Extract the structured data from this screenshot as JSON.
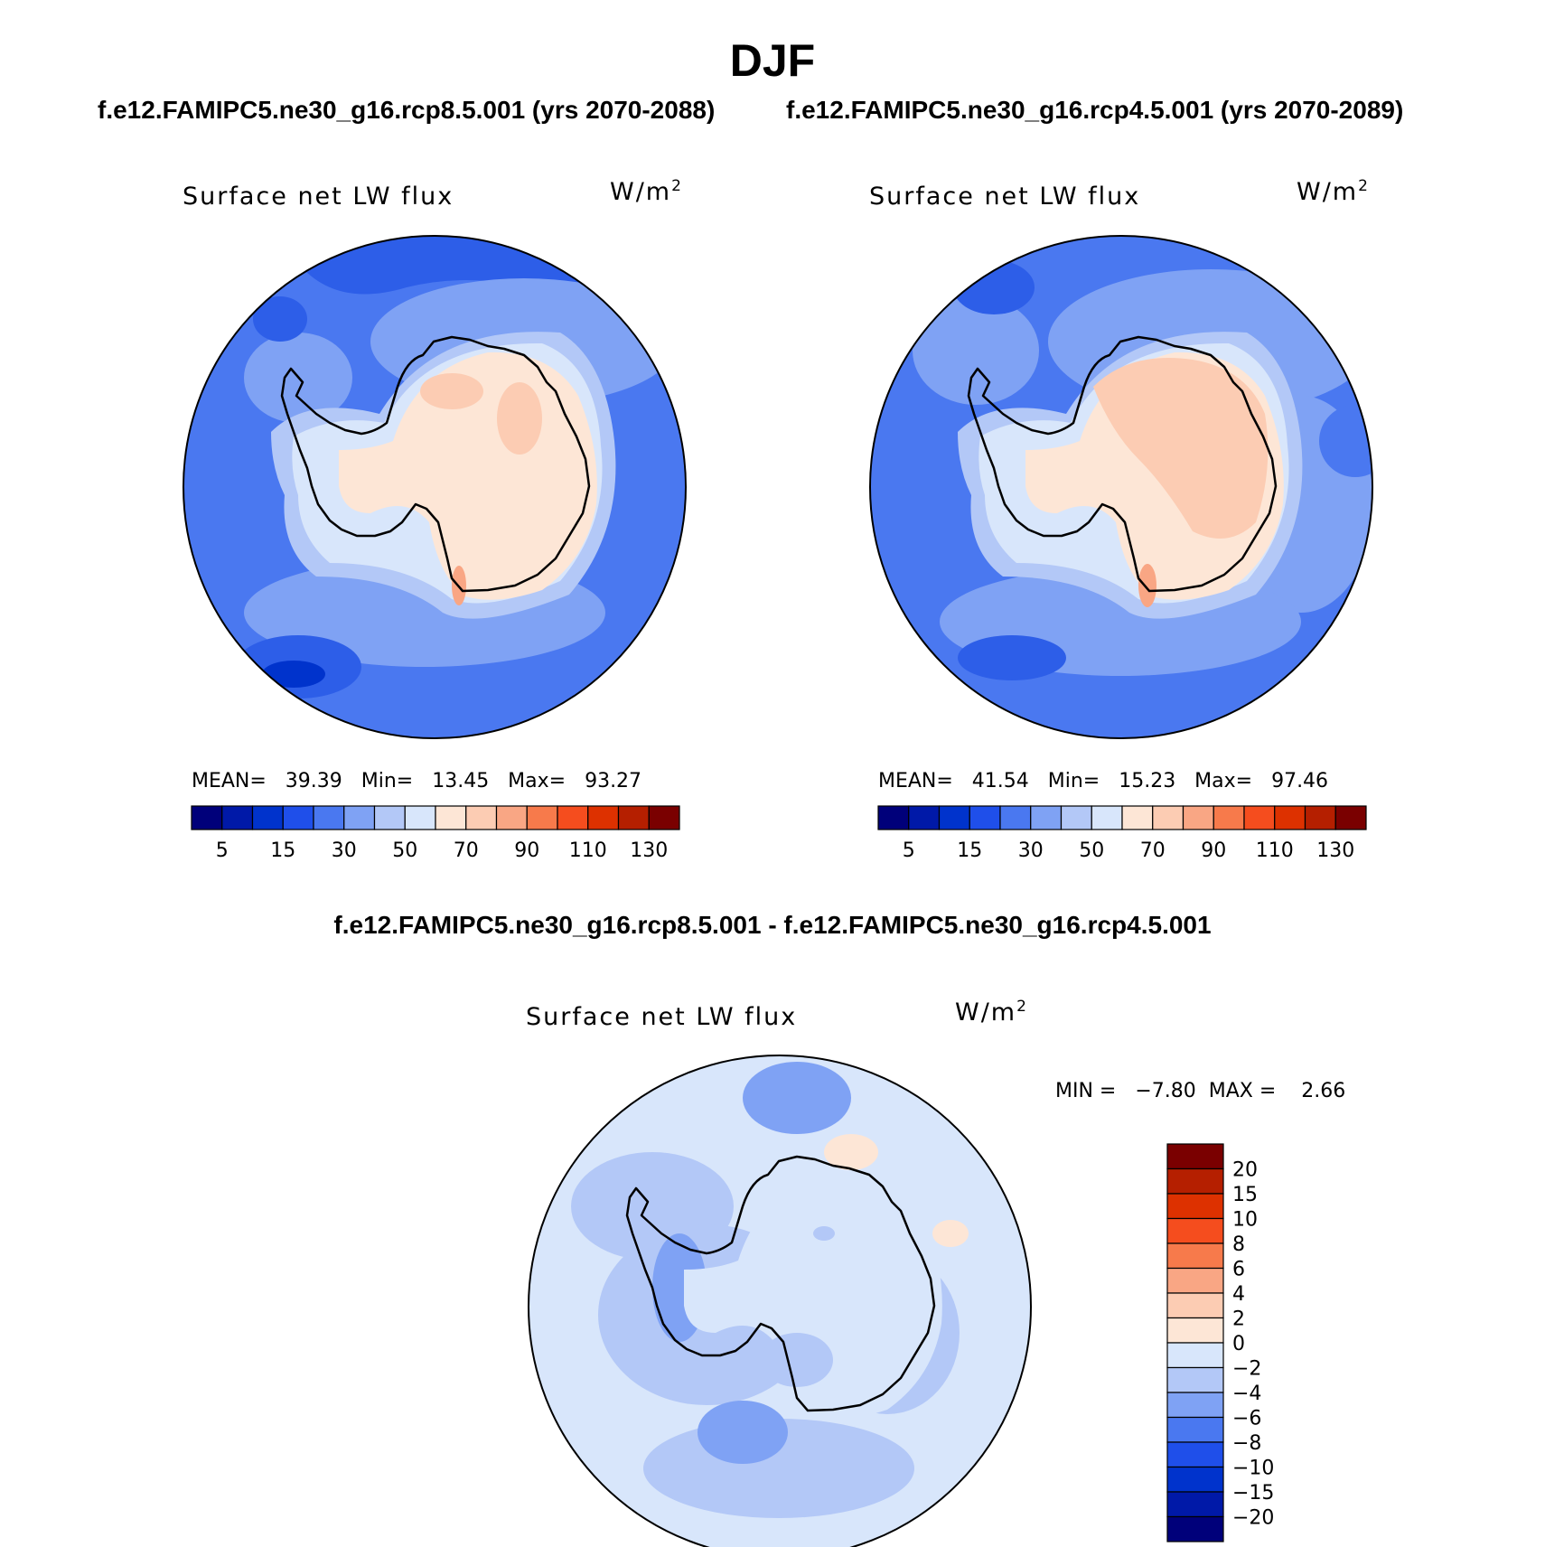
{
  "season_title": "DJF",
  "case1_title": "f.e12.FAMIPC5.ne30_g16.rcp8.5.001 (yrs 2070-2088)",
  "case2_title": "f.e12.FAMIPC5.ne30_g16.rcp4.5.001 (yrs 2070-2089)",
  "diff_title": "f.e12.FAMIPC5.ne30_g16.rcp8.5.001 - f.e12.FAMIPC5.ne30_g16.rcp4.5.001",
  "panels": [
    {
      "field_label": "Surface net LW flux",
      "units": "W/m",
      "units_sup": "2",
      "stats": "MEAN=   39.39   Min=   13.45   Max=   93.27"
    },
    {
      "field_label": "Surface net LW flux",
      "units": "W/m",
      "units_sup": "2",
      "stats": "MEAN=   41.54   Min=   15.23   Max=   97.46"
    },
    {
      "field_label": "Surface net LW flux",
      "units": "W/m",
      "units_sup": "2",
      "stats": "MIN =   −7.80  MAX =    2.66"
    }
  ],
  "colorbar_main": {
    "colors": [
      "#00007a",
      "#0019a8",
      "#0033cc",
      "#1f4fea",
      "#4a78f0",
      "#7fa2f4",
      "#b3c8f7",
      "#d8e6fb",
      "#fde6d6",
      "#fcccb3",
      "#f9a684",
      "#f77a4b",
      "#f54d1e",
      "#dd3100",
      "#b51f00",
      "#7a0000"
    ],
    "labels": [
      "5",
      "15",
      "30",
      "50",
      "70",
      "90",
      "110",
      "130"
    ]
  },
  "colorbar_diff": {
    "colors": [
      "#7a0000",
      "#b51f00",
      "#dd3100",
      "#f54d1e",
      "#f77a4b",
      "#f9a684",
      "#fcccb3",
      "#fde6d6",
      "#d8e6fb",
      "#b3c8f7",
      "#7fa2f4",
      "#4a78f0",
      "#1f4fea",
      "#0033cc",
      "#0019a8",
      "#00007a"
    ],
    "labels": [
      "20",
      "15",
      "10",
      "8",
      "6",
      "4",
      "2",
      "0",
      "−2",
      "−4",
      "−6",
      "−8",
      "−10",
      "−15",
      "−20"
    ]
  }
}
